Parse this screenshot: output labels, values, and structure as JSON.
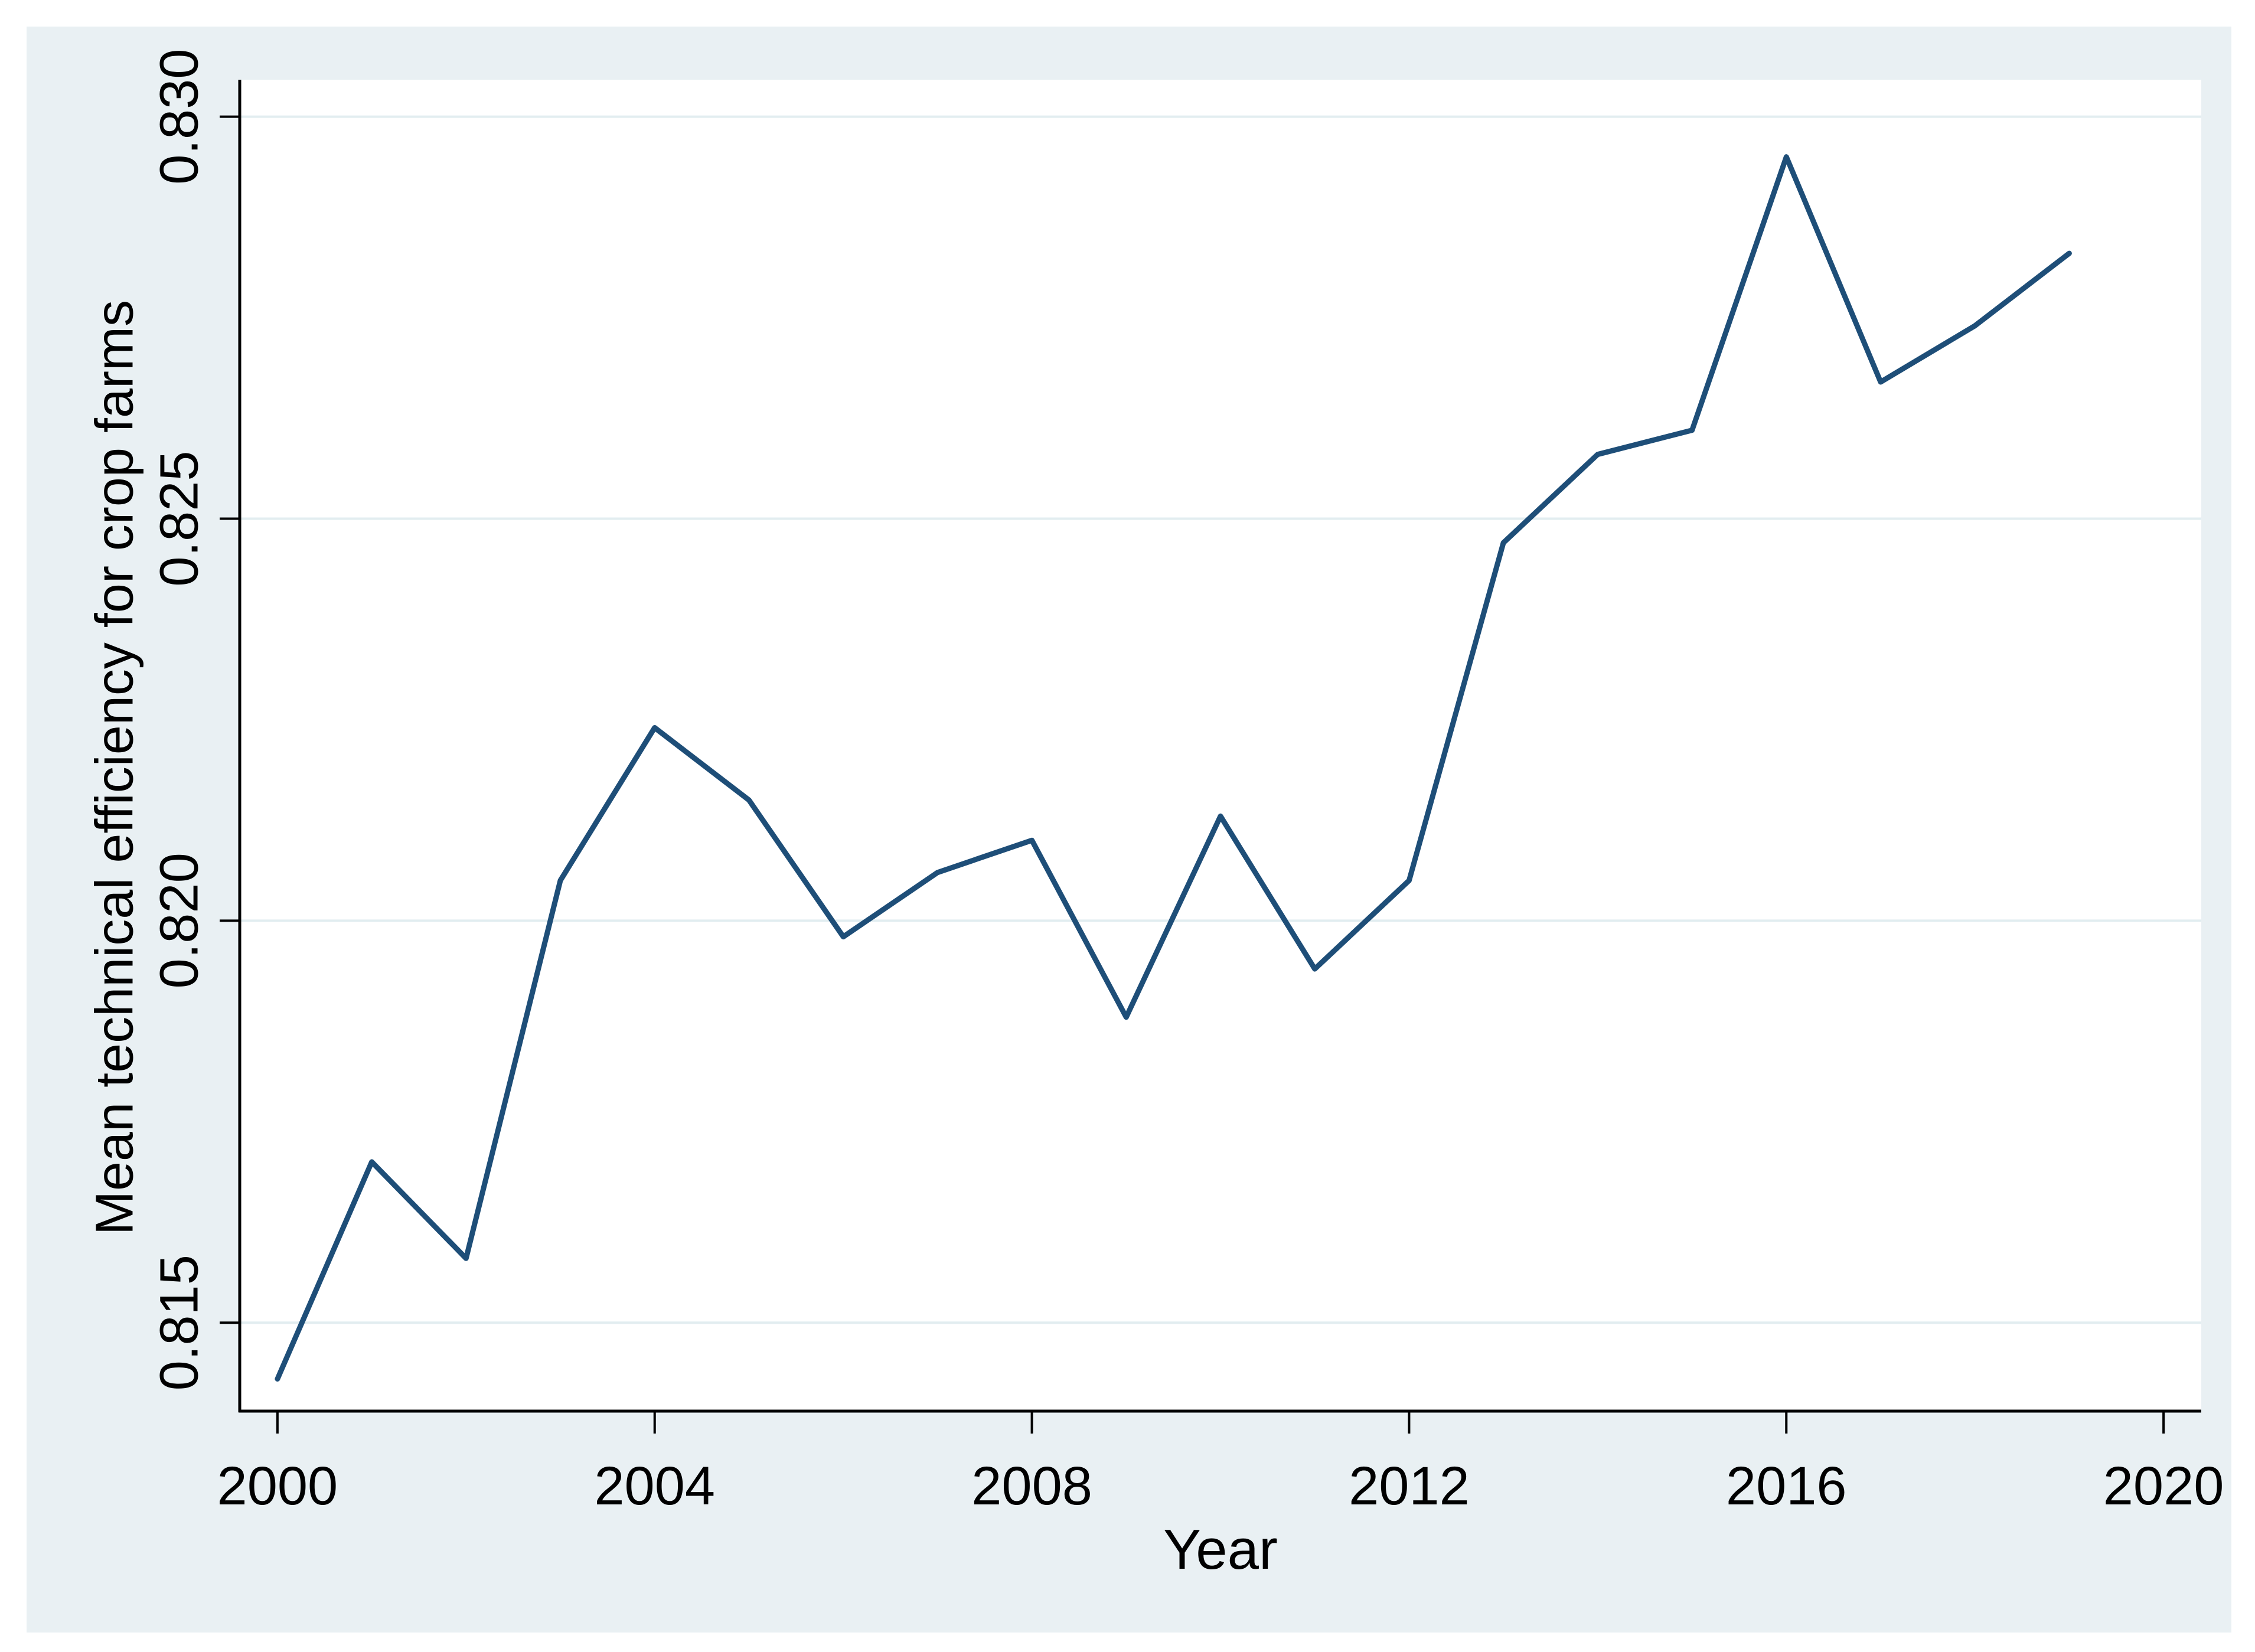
{
  "figure": {
    "y_axis_title": "Mean technical efficiency for crop farms",
    "x_axis_title": "Year"
  },
  "chart_data": {
    "type": "line",
    "title": "",
    "xlabel": "Year",
    "ylabel": "Mean technical efficiency for crop farms",
    "x": [
      2000,
      2001,
      2002,
      2003,
      2004,
      2005,
      2006,
      2007,
      2008,
      2009,
      2010,
      2011,
      2012,
      2013,
      2014,
      2015,
      2016,
      2017,
      2018,
      2019
    ],
    "values": [
      0.8143,
      0.817,
      0.8158,
      0.8205,
      0.8224,
      0.8215,
      0.8198,
      0.8206,
      0.821,
      0.8188,
      0.8213,
      0.8194,
      0.8205,
      0.8247,
      0.8258,
      0.8261,
      0.8295,
      0.8267,
      0.8274,
      0.8283
    ],
    "x_ticks": [
      2000,
      2004,
      2008,
      2012,
      2016,
      2020
    ],
    "x_tick_labels": [
      "2000",
      "2004",
      "2008",
      "2012",
      "2016",
      "2020"
    ],
    "y_ticks": [
      0.815,
      0.82,
      0.825,
      0.83
    ],
    "y_tick_labels": [
      "0.815",
      "0.820",
      "0.825",
      "0.830"
    ],
    "y_tick_label_rotation": 90,
    "xlim": [
      1999.6,
      2020.4
    ],
    "ylim": [
      0.8139,
      0.83046
    ],
    "grid": "horizontal",
    "legend": "none",
    "series_name": "Mean technical efficiency for crop farms",
    "colors": {
      "line": "#1e4e78",
      "graph_region_background": "#e9f0f3",
      "plot_background": "#ffffff",
      "gridline": "#e2edf0",
      "axis": "#000000",
      "text": "#000000",
      "page_background": "#ffffff"
    }
  }
}
